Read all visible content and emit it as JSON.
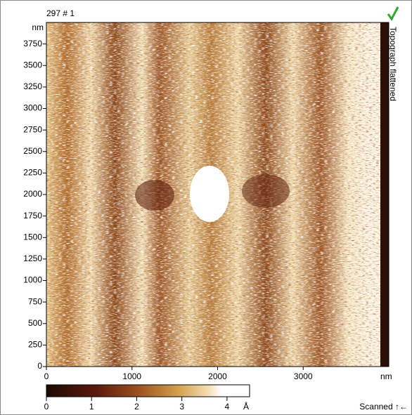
{
  "window": {
    "title": "297 # 1",
    "side_label": "Topograph flattened",
    "status": "Scanned ↑←"
  },
  "image": {
    "x_axis": {
      "unit": "nm",
      "lim": [
        0,
        4000
      ],
      "ticks": [
        0,
        1000,
        2000,
        3000
      ]
    },
    "y_axis": {
      "unit": "nm",
      "lim": [
        0,
        4000
      ],
      "ticks": [
        0,
        250,
        500,
        750,
        1000,
        1250,
        1500,
        1750,
        2000,
        2250,
        2500,
        2750,
        3000,
        3250,
        3500,
        3750
      ]
    }
  },
  "colorbar": {
    "unit": "Å",
    "lim": [
      0,
      4.5
    ],
    "ticks": [
      0,
      1,
      2,
      3,
      4
    ]
  }
}
